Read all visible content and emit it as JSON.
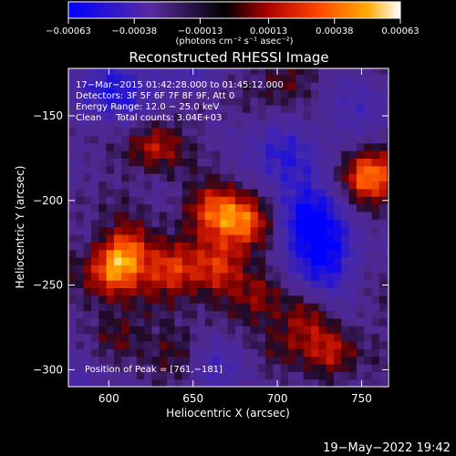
{
  "chart_data": {
    "type": "heatmap",
    "title": "Reconstructed RHESSI Image",
    "xlabel": "Heliocentric X (arcsec)",
    "ylabel": "Heliocentric Y (arcsec)",
    "xlim": [
      576,
      766
    ],
    "ylim": [
      -310,
      -122
    ],
    "x_ticks": [
      600,
      650,
      700,
      750
    ],
    "y_ticks": [
      -150,
      -200,
      -250,
      -300
    ],
    "x_tick_labels": [
      "600",
      "650",
      "700",
      "750"
    ],
    "y_tick_labels": [
      "−150",
      "−200",
      "−250",
      "−300"
    ],
    "colorbar": {
      "min": -0.00063,
      "max": 0.00063,
      "ticks": [
        -0.00063,
        -0.00038,
        -0.00013,
        0.00013,
        0.00038,
        0.00063
      ],
      "tick_labels": [
        "−0.00063",
        "−0.00038",
        "−0.00013",
        "0.00013",
        "0.00038",
        "0.00063"
      ],
      "units_label": "(photons cm⁻² s⁻¹ asec⁻²)",
      "colormap": [
        "#0000ff",
        "#5a2aa0",
        "#000000",
        "#aa0000",
        "#ff4400",
        "#ffaa00",
        "#ffffff"
      ]
    },
    "annotations": [
      "17−Mar−2015 01:42:28.000 to 01:45:12.000",
      "Detectors: 3F 5F 6F 7F 8F 9F, Att 0",
      "Energy Range: 12.0 − 25.0 keV",
      "Clean     Total counts: 3.04E+03",
      "Position of Peak = [761,−181]"
    ],
    "peak_position": [
      761,
      -181
    ],
    "approx_blobs": [
      {
        "x": 755,
        "y": -185,
        "value": 0.00063
      },
      {
        "x": 682,
        "y": -212,
        "value": 0.0005
      },
      {
        "x": 664,
        "y": -205,
        "value": 0.00045
      },
      {
        "x": 610,
        "y": -230,
        "value": 0.0004
      },
      {
        "x": 638,
        "y": -240,
        "value": 0.00045
      },
      {
        "x": 602,
        "y": -242,
        "value": 0.00042
      },
      {
        "x": 665,
        "y": -240,
        "value": 0.00035
      },
      {
        "x": 626,
        "y": -168,
        "value": 0.0003
      },
      {
        "x": 690,
        "y": -255,
        "value": 0.0003
      },
      {
        "x": 718,
        "y": -265,
        "value": 0.00028
      },
      {
        "x": 732,
        "y": -288,
        "value": 0.00028
      },
      {
        "x": 605,
        "y": -280,
        "value": 0.00025
      },
      {
        "x": 643,
        "y": -288,
        "value": 0.0002
      },
      {
        "x": 704,
        "y": -128,
        "value": 0.0002
      },
      {
        "x": 700,
        "y": -290,
        "value": 0.00018
      },
      {
        "x": 650,
        "y": -140,
        "value": 0.00016
      },
      {
        "x": 745,
        "y": -150,
        "value": -0.0002
      },
      {
        "x": 722,
        "y": -210,
        "value": -0.00045
      },
      {
        "x": 600,
        "y": -135,
        "value": -0.00035
      },
      {
        "x": 700,
        "y": -175,
        "value": -0.0003
      },
      {
        "x": 725,
        "y": -240,
        "value": -0.0004
      },
      {
        "x": 645,
        "y": -125,
        "value": -0.00028
      },
      {
        "x": 665,
        "y": -300,
        "value": -0.00022
      },
      {
        "x": 585,
        "y": -300,
        "value": -0.00018
      }
    ]
  },
  "footer": {
    "timestamp": "19−May−2022 19:42"
  }
}
